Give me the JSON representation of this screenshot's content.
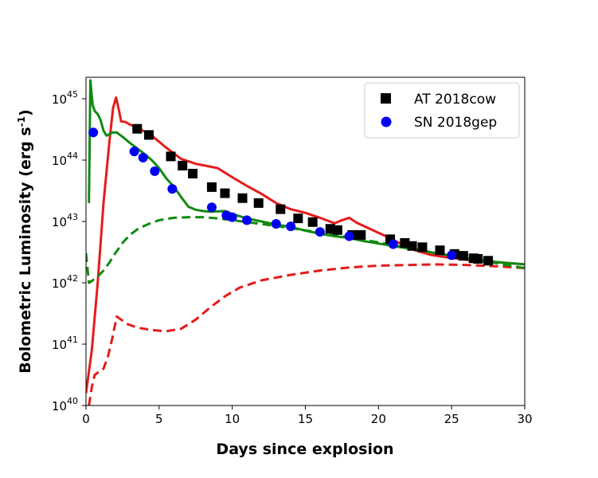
{
  "chart_data": {
    "type": "scatter",
    "title": "",
    "xlabel": "Days since explosion",
    "ylabel_base": "Bolometric Luminosity (erg s",
    "ylabel_sup": "-1",
    "ylabel_close": ")",
    "xlim": [
      0,
      30
    ],
    "ylim_log10": [
      40,
      45.35
    ],
    "y_scale": "log",
    "xticks": [
      0,
      5,
      10,
      15,
      20,
      25,
      30
    ],
    "yticks": [
      {
        "base": "10",
        "exp": "40",
        "value": 40
      },
      {
        "base": "10",
        "exp": "41",
        "value": 41
      },
      {
        "base": "10",
        "exp": "42",
        "value": 42
      },
      {
        "base": "10",
        "exp": "43",
        "value": 43
      },
      {
        "base": "10",
        "exp": "44",
        "value": 44
      },
      {
        "base": "10",
        "exp": "45",
        "value": 45
      }
    ],
    "legend_position": "top-right",
    "legend": [
      {
        "label": "AT 2018cow",
        "marker": "square",
        "color": "#000000"
      },
      {
        "label": "SN 2018gep",
        "marker": "circle",
        "color": "#0000ee"
      }
    ],
    "series": [
      {
        "name": "AT 2018cow",
        "kind": "points",
        "marker": "square",
        "color": "#000000",
        "x": [
          3.5,
          4.3,
          5.8,
          6.6,
          7.3,
          8.6,
          9.5,
          10.7,
          11.8,
          13.3,
          14.5,
          15.5,
          16.7,
          17.2,
          18.2,
          18.8,
          20.8,
          21.8,
          22.3,
          23.0,
          24.2,
          25.2,
          25.8,
          26.5,
          26.8,
          27.5
        ],
        "y_log10": [
          44.51,
          44.41,
          44.06,
          43.91,
          43.78,
          43.56,
          43.46,
          43.38,
          43.3,
          43.2,
          43.05,
          42.99,
          42.88,
          42.86,
          42.78,
          42.78,
          42.71,
          42.65,
          42.6,
          42.58,
          42.53,
          42.47,
          42.44,
          42.4,
          42.39,
          42.36
        ]
      },
      {
        "name": "SN 2018gep",
        "kind": "points",
        "marker": "circle",
        "color": "#0000ee",
        "x": [
          0.5,
          3.3,
          3.9,
          4.7,
          5.9,
          8.6,
          9.6,
          10.0,
          11.0,
          13.0,
          14.0,
          16.0,
          18.0,
          21.0,
          25.0
        ],
        "y_log10": [
          44.45,
          44.14,
          44.04,
          43.82,
          43.53,
          43.23,
          43.1,
          43.07,
          43.02,
          42.96,
          42.92,
          42.83,
          42.76,
          42.63,
          42.45
        ]
      },
      {
        "name": "red-solid-model",
        "kind": "line",
        "color": "#e51b1b",
        "dash": "solid",
        "points": [
          [
            0,
            40.2
          ],
          [
            0.4,
            40.9
          ],
          [
            0.8,
            42.0
          ],
          [
            1.2,
            43.3
          ],
          [
            1.6,
            44.3
          ],
          [
            1.85,
            44.85
          ],
          [
            2.05,
            45.02
          ],
          [
            2.25,
            44.82
          ],
          [
            2.4,
            44.63
          ],
          [
            2.7,
            44.62
          ],
          [
            3.0,
            44.58
          ],
          [
            3.5,
            44.53
          ],
          [
            4.5,
            44.4
          ],
          [
            5.5,
            44.2
          ],
          [
            6.5,
            44.02
          ],
          [
            7.5,
            43.94
          ],
          [
            9.0,
            43.87
          ],
          [
            10.0,
            43.72
          ],
          [
            11.0,
            43.58
          ],
          [
            12.0,
            43.45
          ],
          [
            13.0,
            43.3
          ],
          [
            14.0,
            43.2
          ],
          [
            15.0,
            43.14
          ],
          [
            16.0,
            43.06
          ],
          [
            17.0,
            42.97
          ],
          [
            17.5,
            43.02
          ],
          [
            18.0,
            43.06
          ],
          [
            18.5,
            42.98
          ],
          [
            19.5,
            42.87
          ],
          [
            20.5,
            42.76
          ],
          [
            21.5,
            42.64
          ],
          [
            22.5,
            42.53
          ],
          [
            23.5,
            42.46
          ],
          [
            24.5,
            42.42
          ],
          [
            25.5,
            42.39
          ],
          [
            26.5,
            42.36
          ],
          [
            27.5,
            42.34
          ],
          [
            28.5,
            42.33
          ],
          [
            30.0,
            42.3
          ]
        ]
      },
      {
        "name": "red-dashed-model",
        "kind": "line",
        "color": "#e51b1b",
        "dash": "dashed",
        "points": [
          [
            0.2,
            40.0
          ],
          [
            0.4,
            40.3
          ],
          [
            0.6,
            40.5
          ],
          [
            0.9,
            40.55
          ],
          [
            1.2,
            40.6
          ],
          [
            1.5,
            40.8
          ],
          [
            1.8,
            41.1
          ],
          [
            2.1,
            41.45
          ],
          [
            2.4,
            41.4
          ],
          [
            2.8,
            41.33
          ],
          [
            3.5,
            41.27
          ],
          [
            4.5,
            41.23
          ],
          [
            5.5,
            41.21
          ],
          [
            6.5,
            41.25
          ],
          [
            7.5,
            41.4
          ],
          [
            8.5,
            41.6
          ],
          [
            9.5,
            41.78
          ],
          [
            10.5,
            41.92
          ],
          [
            12.0,
            42.04
          ],
          [
            14.0,
            42.13
          ],
          [
            16.0,
            42.2
          ],
          [
            18.0,
            42.25
          ],
          [
            20.0,
            42.28
          ],
          [
            22.0,
            42.29
          ],
          [
            24.0,
            42.3
          ],
          [
            26.0,
            42.29
          ],
          [
            28.0,
            42.27
          ],
          [
            30.0,
            42.24
          ]
        ]
      },
      {
        "name": "green-solid-model",
        "kind": "line",
        "color": "#118a11",
        "dash": "solid",
        "points": [
          [
            0.2,
            43.3
          ],
          [
            0.3,
            45.3
          ],
          [
            0.45,
            44.9
          ],
          [
            0.6,
            44.8
          ],
          [
            0.8,
            44.75
          ],
          [
            1.0,
            44.65
          ],
          [
            1.2,
            44.48
          ],
          [
            1.4,
            44.4
          ],
          [
            1.6,
            44.42
          ],
          [
            1.8,
            44.45
          ],
          [
            2.1,
            44.45
          ],
          [
            2.5,
            44.38
          ],
          [
            3.0,
            44.28
          ],
          [
            3.5,
            44.19
          ],
          [
            4.0,
            44.1
          ],
          [
            4.5,
            44.0
          ],
          [
            5.0,
            43.87
          ],
          [
            5.5,
            43.7
          ],
          [
            6.0,
            43.57
          ],
          [
            6.5,
            43.4
          ],
          [
            7.0,
            43.24
          ],
          [
            7.5,
            43.19
          ],
          [
            8.0,
            43.17
          ],
          [
            8.5,
            43.16
          ],
          [
            9.5,
            43.17
          ],
          [
            10.0,
            43.12
          ],
          [
            11.0,
            43.05
          ],
          [
            12.0,
            43.0
          ],
          [
            13.0,
            42.95
          ],
          [
            14.0,
            42.91
          ],
          [
            15.0,
            42.85
          ],
          [
            16.0,
            42.8
          ],
          [
            17.0,
            42.76
          ],
          [
            18.0,
            42.73
          ],
          [
            19.0,
            42.68
          ],
          [
            20.0,
            42.64
          ],
          [
            21.0,
            42.6
          ],
          [
            22.0,
            42.56
          ],
          [
            23.0,
            42.52
          ],
          [
            24.0,
            42.48
          ],
          [
            25.0,
            42.44
          ],
          [
            26.0,
            42.4
          ],
          [
            27.0,
            42.37
          ],
          [
            28.0,
            42.34
          ],
          [
            30.0,
            42.3
          ]
        ]
      },
      {
        "name": "green-dashed-model",
        "kind": "line",
        "color": "#118a11",
        "dash": "dashed",
        "points": [
          [
            0.0,
            42.48
          ],
          [
            0.2,
            42.0
          ],
          [
            0.4,
            42.03
          ],
          [
            0.8,
            42.1
          ],
          [
            1.2,
            42.2
          ],
          [
            1.6,
            42.33
          ],
          [
            2.0,
            42.48
          ],
          [
            2.5,
            42.65
          ],
          [
            3.0,
            42.78
          ],
          [
            3.5,
            42.87
          ],
          [
            4.0,
            42.93
          ],
          [
            4.5,
            42.98
          ],
          [
            5.0,
            43.02
          ],
          [
            5.5,
            43.04
          ],
          [
            6.0,
            43.06
          ],
          [
            7.0,
            43.07
          ],
          [
            8.0,
            43.07
          ],
          [
            9.0,
            43.05
          ],
          [
            10.0,
            43.02
          ],
          [
            12.0,
            42.96
          ],
          [
            14.0,
            42.89
          ],
          [
            16.0,
            42.82
          ],
          [
            18.0,
            42.74
          ],
          [
            20.0,
            42.66
          ],
          [
            22.0,
            42.57
          ],
          [
            24.0,
            42.48
          ],
          [
            26.0,
            42.4
          ],
          [
            28.0,
            42.32
          ],
          [
            30.0,
            42.24
          ]
        ]
      }
    ]
  }
}
